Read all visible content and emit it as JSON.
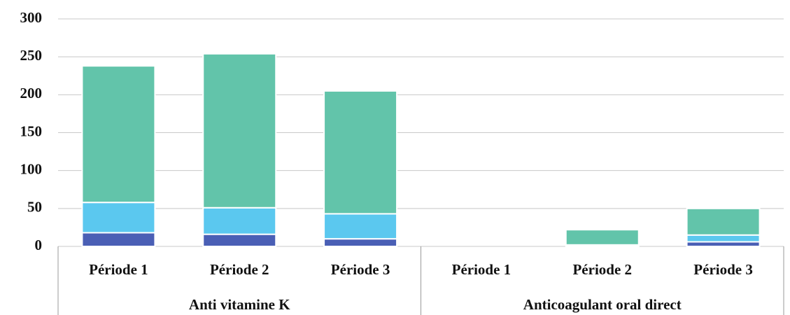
{
  "chart_data": {
    "type": "stacked_bar",
    "groups": [
      {
        "name": "Anti vitamine K",
        "categories": [
          "Période 1",
          "Période 2",
          "Période 3"
        ]
      },
      {
        "name": "Anticoagulant oral direct",
        "categories": [
          "Période 1",
          "Période 2",
          "Période 3"
        ]
      }
    ],
    "series": [
      {
        "color": "#4a5fb5",
        "values": [
          18,
          16,
          10,
          0,
          0,
          6
        ]
      },
      {
        "color": "#5bc8ef",
        "values": [
          40,
          35,
          33,
          0,
          2,
          9
        ]
      },
      {
        "color": "#62c4aa",
        "values": [
          180,
          203,
          162,
          0,
          20,
          35
        ]
      }
    ],
    "ylim": [
      0,
      300
    ],
    "yticks": [
      0,
      50,
      100,
      150,
      200,
      250,
      300
    ],
    "grid": true
  }
}
